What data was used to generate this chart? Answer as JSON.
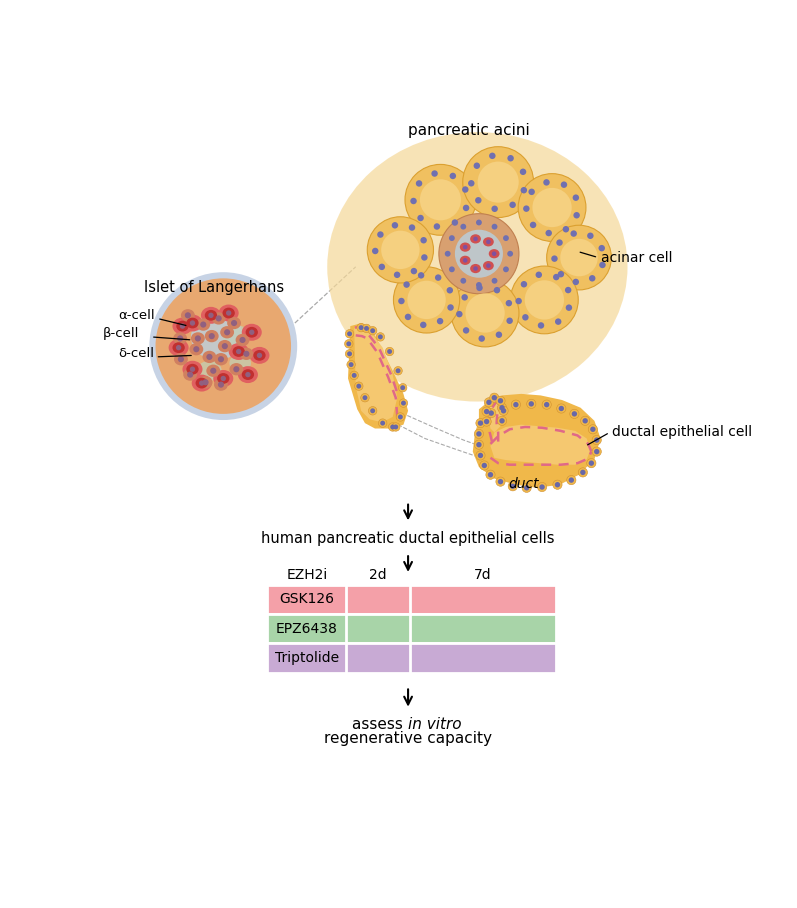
{
  "bg_color": "#ffffff",
  "pancreatic_acini_label": "pancreatic acini",
  "islet_label": "Islet of Langerhans",
  "alpha_label": "α-cell",
  "beta_label": "β-cell",
  "delta_label": "δ-cell",
  "acinar_label": "acinar cell",
  "ductal_label": "ductal epithelial cell",
  "duct_label": "duct",
  "arrow1_label": "human pancreatic ductal epithelial cells",
  "table_header_ezh2i": "EZH2i",
  "table_header_2d": "2d",
  "table_header_7d": "7d",
  "row1_label": "GSK126",
  "row2_label": "EPZ6438",
  "row3_label": "Triptolide",
  "row1_color": "#f4a0a8",
  "row2_color": "#a8d4a8",
  "row3_color": "#c8aad4",
  "acini_bg": "#f5d898",
  "acini_cell_outer": "#f0c060",
  "acini_cell_inner": "#f5d080",
  "acini_nucleus": "#7070b0",
  "acini_lobule_edge": "#dba030",
  "islet_center_bg": "#e8a870",
  "islet_blue_center": "#b8d4e8",
  "islet_green_patch": "#c0d0b8",
  "islet_alpha_outer": "#e06060",
  "islet_alpha_inner": "#c03030",
  "islet_beta_outer": "#d08060",
  "islet_nucleus": "#906080",
  "islet_border_blue": "#9ab0d0",
  "duct_orange": "#f0b84a",
  "duct_pink_line": "#e06888",
  "duct_nucleus": "#6868a8",
  "duct_bg": "#f5c870"
}
